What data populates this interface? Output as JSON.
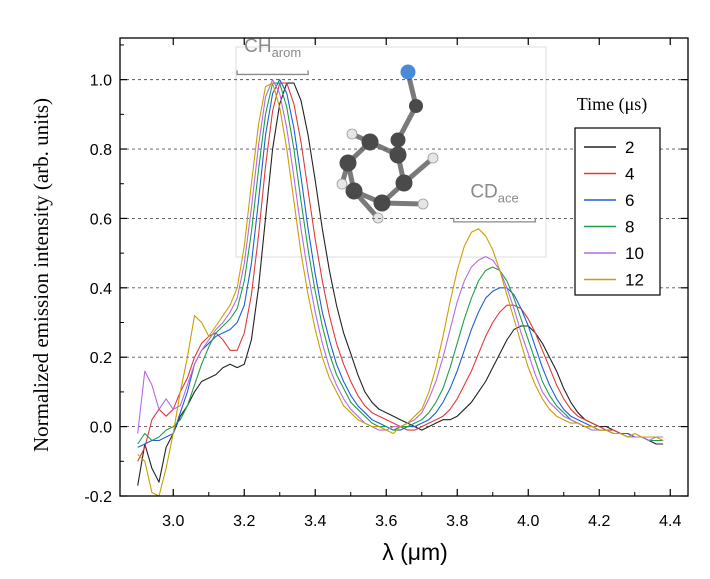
{
  "chart_data": {
    "type": "line",
    "xlabel": "λ (μm)",
    "ylabel": "Normalized emission intensity (arb. units)",
    "xlim": [
      2.85,
      4.45
    ],
    "ylim": [
      -0.2,
      1.12
    ],
    "xticks": [
      "3.0",
      "3.2",
      "3.4",
      "3.6",
      "3.8",
      "4.0",
      "4.2",
      "4.4"
    ],
    "yticks": [
      "-0.2",
      "0.0",
      "0.2",
      "0.4",
      "0.6",
      "0.8",
      "1.0"
    ],
    "grid": "horizontal dashed",
    "legend": {
      "title": "Time (μs)",
      "placement": "right"
    },
    "annotations": [
      {
        "text": "CH",
        "sub": "arom",
        "range": [
          3.18,
          3.38
        ]
      },
      {
        "text": "CD",
        "sub": "ace",
        "range": [
          3.79,
          4.02
        ]
      }
    ],
    "series": [
      {
        "name": "2",
        "color": "#222222",
        "peak1_x": 3.315,
        "peak2_x": 3.99,
        "peak2_y": 0.29,
        "x": [
          2.9,
          2.92,
          2.94,
          2.96,
          2.98,
          3.0,
          3.02,
          3.04,
          3.06,
          3.08,
          3.1,
          3.12,
          3.14,
          3.16,
          3.18,
          3.2,
          3.22,
          3.24,
          3.26,
          3.28,
          3.3,
          3.32,
          3.34,
          3.36,
          3.38,
          3.4,
          3.42,
          3.44,
          3.46,
          3.48,
          3.5,
          3.52,
          3.54,
          3.56,
          3.58,
          3.6,
          3.62,
          3.64,
          3.66,
          3.68,
          3.7,
          3.72,
          3.74,
          3.76,
          3.78,
          3.8,
          3.82,
          3.84,
          3.86,
          3.88,
          3.9,
          3.92,
          3.94,
          3.96,
          3.98,
          4.0,
          4.02,
          4.04,
          4.06,
          4.08,
          4.1,
          4.12,
          4.14,
          4.16,
          4.18,
          4.2,
          4.22,
          4.24,
          4.26,
          4.28,
          4.3,
          4.32,
          4.34,
          4.36,
          4.38
        ],
        "y": [
          -0.17,
          -0.05,
          -0.12,
          -0.16,
          -0.06,
          -0.02,
          0.03,
          0.06,
          0.1,
          0.13,
          0.14,
          0.15,
          0.17,
          0.18,
          0.17,
          0.18,
          0.25,
          0.4,
          0.6,
          0.8,
          0.93,
          0.99,
          0.99,
          0.94,
          0.84,
          0.71,
          0.57,
          0.45,
          0.35,
          0.27,
          0.21,
          0.15,
          0.1,
          0.07,
          0.05,
          0.04,
          0.03,
          0.02,
          0.01,
          0.0,
          -0.01,
          0.0,
          0.01,
          0.02,
          0.02,
          0.03,
          0.05,
          0.07,
          0.1,
          0.13,
          0.17,
          0.21,
          0.25,
          0.28,
          0.29,
          0.29,
          0.27,
          0.24,
          0.2,
          0.16,
          0.11,
          0.07,
          0.04,
          0.02,
          0.01,
          0.0,
          0.0,
          -0.01,
          -0.02,
          -0.02,
          -0.03,
          -0.03,
          -0.04,
          -0.05,
          -0.05
        ]
      },
      {
        "name": "4",
        "color": "#e03a3a",
        "peak1_x": 3.305,
        "peak2_x": 3.97,
        "peak2_y": 0.35,
        "x": [
          2.9,
          2.92,
          2.94,
          2.96,
          2.98,
          3.0,
          3.02,
          3.04,
          3.06,
          3.08,
          3.1,
          3.12,
          3.14,
          3.16,
          3.18,
          3.2,
          3.22,
          3.24,
          3.26,
          3.28,
          3.3,
          3.32,
          3.34,
          3.36,
          3.38,
          3.4,
          3.42,
          3.44,
          3.46,
          3.48,
          3.5,
          3.52,
          3.54,
          3.56,
          3.58,
          3.6,
          3.62,
          3.64,
          3.66,
          3.68,
          3.7,
          3.72,
          3.74,
          3.76,
          3.78,
          3.8,
          3.82,
          3.84,
          3.86,
          3.88,
          3.9,
          3.92,
          3.94,
          3.96,
          3.98,
          4.0,
          4.02,
          4.04,
          4.06,
          4.08,
          4.1,
          4.12,
          4.14,
          4.16,
          4.18,
          4.2,
          4.22,
          4.24,
          4.26,
          4.28,
          4.3,
          4.32,
          4.34,
          4.36,
          4.38
        ],
        "y": [
          -0.1,
          -0.06,
          0.02,
          0.05,
          0.03,
          0.05,
          0.1,
          0.14,
          0.2,
          0.24,
          0.26,
          0.27,
          0.25,
          0.22,
          0.22,
          0.27,
          0.38,
          0.55,
          0.75,
          0.91,
          0.99,
          0.99,
          0.93,
          0.82,
          0.68,
          0.54,
          0.42,
          0.32,
          0.24,
          0.18,
          0.13,
          0.09,
          0.06,
          0.04,
          0.03,
          0.02,
          0.01,
          0.0,
          -0.01,
          -0.01,
          0.0,
          0.01,
          0.02,
          0.03,
          0.05,
          0.08,
          0.12,
          0.16,
          0.21,
          0.26,
          0.3,
          0.33,
          0.35,
          0.35,
          0.34,
          0.31,
          0.27,
          0.22,
          0.17,
          0.12,
          0.08,
          0.05,
          0.03,
          0.02,
          0.01,
          0.0,
          -0.01,
          -0.01,
          -0.02,
          -0.02,
          -0.03,
          -0.03,
          -0.04,
          -0.04,
          -0.04
        ]
      },
      {
        "name": "6",
        "color": "#1f5fd6",
        "peak1_x": 3.295,
        "peak2_x": 3.95,
        "peak2_y": 0.4,
        "x": [
          2.9,
          2.92,
          2.94,
          2.96,
          2.98,
          3.0,
          3.02,
          3.04,
          3.06,
          3.08,
          3.1,
          3.12,
          3.14,
          3.16,
          3.18,
          3.2,
          3.22,
          3.24,
          3.26,
          3.28,
          3.3,
          3.32,
          3.34,
          3.36,
          3.38,
          3.4,
          3.42,
          3.44,
          3.46,
          3.48,
          3.5,
          3.52,
          3.54,
          3.56,
          3.58,
          3.6,
          3.62,
          3.64,
          3.66,
          3.68,
          3.7,
          3.72,
          3.74,
          3.76,
          3.78,
          3.8,
          3.82,
          3.84,
          3.86,
          3.88,
          3.9,
          3.92,
          3.94,
          3.96,
          3.98,
          4.0,
          4.02,
          4.04,
          4.06,
          4.08,
          4.1,
          4.12,
          4.14,
          4.16,
          4.18,
          4.2,
          4.22,
          4.24,
          4.26,
          4.28,
          4.3,
          4.32,
          4.34,
          4.36,
          4.38
        ],
        "y": [
          -0.06,
          -0.05,
          -0.04,
          -0.04,
          -0.03,
          -0.02,
          0.04,
          0.1,
          0.18,
          0.22,
          0.24,
          0.26,
          0.27,
          0.28,
          0.3,
          0.35,
          0.47,
          0.65,
          0.84,
          0.96,
          1.0,
          0.96,
          0.86,
          0.72,
          0.57,
          0.44,
          0.33,
          0.25,
          0.18,
          0.13,
          0.09,
          0.06,
          0.04,
          0.02,
          0.01,
          0.0,
          -0.01,
          -0.01,
          0.0,
          0.0,
          0.01,
          0.02,
          0.04,
          0.07,
          0.11,
          0.16,
          0.22,
          0.28,
          0.33,
          0.37,
          0.39,
          0.4,
          0.4,
          0.38,
          0.34,
          0.29,
          0.23,
          0.17,
          0.12,
          0.08,
          0.05,
          0.03,
          0.02,
          0.01,
          0.0,
          -0.01,
          -0.01,
          -0.02,
          -0.02,
          -0.02,
          -0.03,
          -0.03,
          -0.04,
          -0.04,
          -0.04
        ]
      },
      {
        "name": "8",
        "color": "#1f9e4a",
        "peak1_x": 3.29,
        "peak2_x": 3.92,
        "peak2_y": 0.46,
        "x": [
          2.9,
          2.92,
          2.94,
          2.96,
          2.98,
          3.0,
          3.02,
          3.04,
          3.06,
          3.08,
          3.1,
          3.12,
          3.14,
          3.16,
          3.18,
          3.2,
          3.22,
          3.24,
          3.26,
          3.28,
          3.3,
          3.32,
          3.34,
          3.36,
          3.38,
          3.4,
          3.42,
          3.44,
          3.46,
          3.48,
          3.5,
          3.52,
          3.54,
          3.56,
          3.58,
          3.6,
          3.62,
          3.64,
          3.66,
          3.68,
          3.7,
          3.72,
          3.74,
          3.76,
          3.78,
          3.8,
          3.82,
          3.84,
          3.86,
          3.88,
          3.9,
          3.92,
          3.94,
          3.96,
          3.98,
          4.0,
          4.02,
          4.04,
          4.06,
          4.08,
          4.1,
          4.12,
          4.14,
          4.16,
          4.18,
          4.2,
          4.22,
          4.24,
          4.26,
          4.28,
          4.3,
          4.32,
          4.34,
          4.36,
          4.38
        ],
        "y": [
          -0.05,
          -0.02,
          -0.04,
          -0.03,
          -0.01,
          0.0,
          0.02,
          0.06,
          0.12,
          0.18,
          0.23,
          0.27,
          0.29,
          0.31,
          0.34,
          0.42,
          0.56,
          0.74,
          0.9,
          0.99,
          0.99,
          0.92,
          0.8,
          0.65,
          0.51,
          0.39,
          0.29,
          0.21,
          0.15,
          0.11,
          0.07,
          0.05,
          0.03,
          0.01,
          0.0,
          0.0,
          -0.01,
          0.0,
          0.0,
          0.01,
          0.02,
          0.04,
          0.07,
          0.11,
          0.17,
          0.24,
          0.31,
          0.37,
          0.42,
          0.45,
          0.46,
          0.45,
          0.42,
          0.37,
          0.31,
          0.25,
          0.19,
          0.13,
          0.09,
          0.06,
          0.04,
          0.02,
          0.01,
          0.0,
          0.0,
          -0.01,
          -0.01,
          -0.02,
          -0.02,
          -0.03,
          -0.03,
          -0.03,
          -0.04,
          -0.04,
          -0.04
        ]
      },
      {
        "name": "10",
        "color": "#b36be8",
        "peak1_x": 3.285,
        "peak2_x": 3.9,
        "peak2_y": 0.49,
        "x": [
          2.9,
          2.92,
          2.94,
          2.96,
          2.98,
          3.0,
          3.02,
          3.04,
          3.06,
          3.08,
          3.1,
          3.12,
          3.14,
          3.16,
          3.18,
          3.2,
          3.22,
          3.24,
          3.26,
          3.28,
          3.3,
          3.32,
          3.34,
          3.36,
          3.38,
          3.4,
          3.42,
          3.44,
          3.46,
          3.48,
          3.5,
          3.52,
          3.54,
          3.56,
          3.58,
          3.6,
          3.62,
          3.64,
          3.66,
          3.68,
          3.7,
          3.72,
          3.74,
          3.76,
          3.78,
          3.8,
          3.82,
          3.84,
          3.86,
          3.88,
          3.9,
          3.92,
          3.94,
          3.96,
          3.98,
          4.0,
          4.02,
          4.04,
          4.06,
          4.08,
          4.1,
          4.12,
          4.14,
          4.16,
          4.18,
          4.2,
          4.22,
          4.24,
          4.26,
          4.28,
          4.3,
          4.32,
          4.34,
          4.36,
          4.38
        ],
        "y": [
          -0.02,
          0.16,
          0.12,
          0.05,
          0.08,
          0.05,
          0.06,
          0.12,
          0.18,
          0.22,
          0.25,
          0.28,
          0.3,
          0.33,
          0.37,
          0.47,
          0.63,
          0.81,
          0.95,
          1.0,
          0.96,
          0.86,
          0.72,
          0.57,
          0.44,
          0.33,
          0.24,
          0.17,
          0.12,
          0.08,
          0.05,
          0.03,
          0.01,
          0.0,
          -0.01,
          -0.01,
          0.0,
          0.0,
          0.01,
          0.02,
          0.04,
          0.08,
          0.13,
          0.2,
          0.28,
          0.36,
          0.42,
          0.46,
          0.48,
          0.49,
          0.48,
          0.45,
          0.4,
          0.34,
          0.27,
          0.21,
          0.15,
          0.1,
          0.07,
          0.05,
          0.03,
          0.02,
          0.01,
          0.0,
          -0.01,
          -0.01,
          -0.01,
          -0.02,
          -0.02,
          -0.03,
          -0.03,
          -0.03,
          -0.04,
          -0.03,
          -0.03
        ]
      },
      {
        "name": "12",
        "color": "#c9a000",
        "peak1_x": 3.28,
        "peak2_x": 3.89,
        "peak2_y": 0.57,
        "x": [
          2.9,
          2.92,
          2.94,
          2.96,
          2.98,
          3.0,
          3.02,
          3.04,
          3.06,
          3.08,
          3.1,
          3.12,
          3.14,
          3.16,
          3.18,
          3.2,
          3.22,
          3.24,
          3.26,
          3.28,
          3.3,
          3.32,
          3.34,
          3.36,
          3.38,
          3.4,
          3.42,
          3.44,
          3.46,
          3.48,
          3.5,
          3.52,
          3.54,
          3.56,
          3.58,
          3.6,
          3.62,
          3.64,
          3.66,
          3.68,
          3.7,
          3.72,
          3.74,
          3.76,
          3.78,
          3.8,
          3.82,
          3.84,
          3.86,
          3.88,
          3.9,
          3.92,
          3.94,
          3.96,
          3.98,
          4.0,
          4.02,
          4.04,
          4.06,
          4.08,
          4.1,
          4.12,
          4.14,
          4.16,
          4.18,
          4.2,
          4.22,
          4.24,
          4.26,
          4.28,
          4.3,
          4.32,
          4.34,
          4.36,
          4.38
        ],
        "y": [
          -0.08,
          -0.1,
          -0.19,
          -0.2,
          -0.12,
          -0.02,
          0.1,
          0.2,
          0.32,
          0.3,
          0.26,
          0.29,
          0.32,
          0.35,
          0.4,
          0.52,
          0.7,
          0.87,
          0.98,
          0.99,
          0.92,
          0.8,
          0.65,
          0.5,
          0.38,
          0.28,
          0.2,
          0.14,
          0.1,
          0.06,
          0.04,
          0.02,
          0.01,
          0.0,
          0.0,
          -0.01,
          -0.02,
          0.0,
          0.01,
          0.03,
          0.05,
          0.1,
          0.17,
          0.26,
          0.36,
          0.45,
          0.52,
          0.56,
          0.57,
          0.55,
          0.51,
          0.45,
          0.38,
          0.31,
          0.24,
          0.17,
          0.12,
          0.08,
          0.05,
          0.03,
          0.02,
          0.01,
          0.01,
          0.0,
          0.0,
          -0.01,
          -0.01,
          -0.02,
          -0.02,
          -0.03,
          -0.02,
          -0.03,
          -0.03,
          -0.03,
          -0.04
        ]
      }
    ]
  }
}
